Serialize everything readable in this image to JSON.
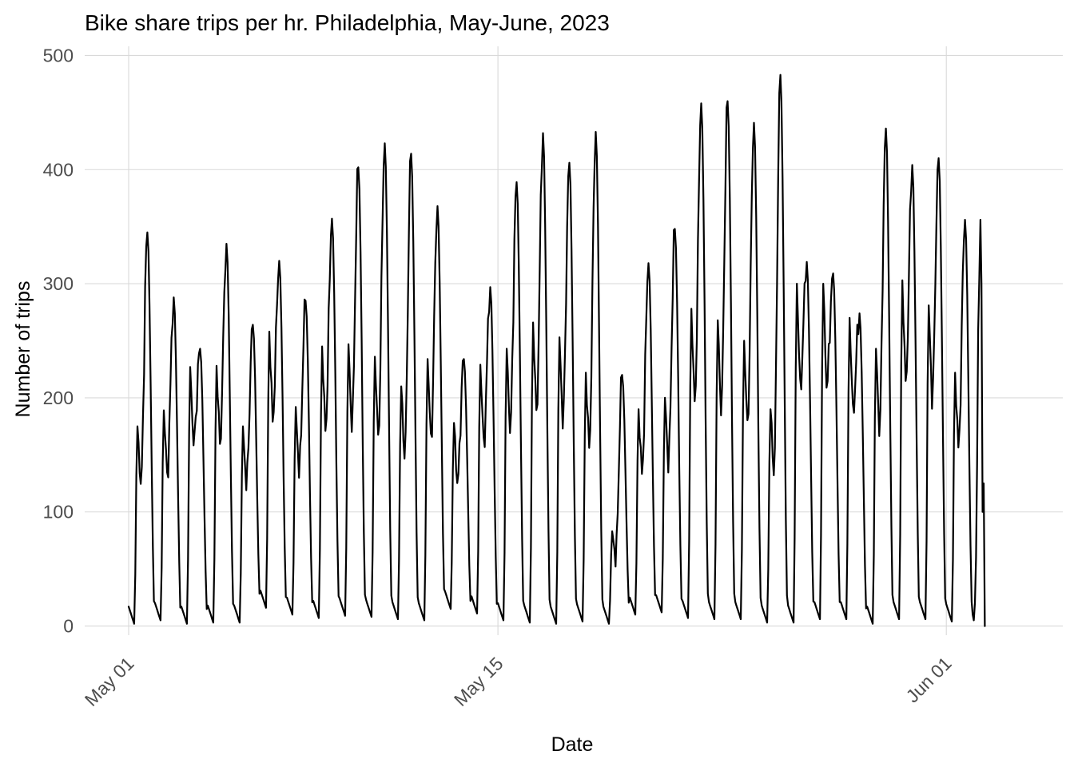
{
  "chart_data": {
    "type": "line",
    "title": "Bike share trips per hr. Philadelphia, May-June, 2023",
    "xlabel": "Date",
    "ylabel": "Number of trips",
    "x_type": "datetime",
    "x_range": [
      "2023-04-29T08:00",
      "2023-06-05T10:00"
    ],
    "ylim": [
      -8,
      508
    ],
    "x_ticks": [
      {
        "value": "2023-05-01",
        "label": "May 01"
      },
      {
        "value": "2023-05-15",
        "label": "May 15"
      },
      {
        "value": "2023-06-01",
        "label": "Jun 01"
      }
    ],
    "y_ticks": [
      0,
      100,
      200,
      300,
      400,
      500
    ],
    "grid": true,
    "legend": "none",
    "x_tick_rotation": 45,
    "line_color": "#000000",
    "series": [
      {
        "x_start": "2023-05-01T00:00",
        "x_step_hours": 1,
        "daily_peak_value": [
          345,
          288,
          243,
          335,
          264,
          320,
          285,
          357,
          402,
          423,
          414,
          368,
          234,
          297,
          389,
          432,
          406,
          433,
          220,
          318,
          348,
          458,
          460,
          441,
          483,
          319,
          309,
          274,
          436,
          404,
          410,
          356
        ],
        "daily_morning_peak_value": [
          175,
          189,
          227,
          228,
          175,
          258,
          192,
          245,
          247,
          236,
          210,
          234,
          178,
          229,
          243,
          266,
          253,
          222,
          83,
          190,
          200,
          278,
          268,
          250,
          190,
          300,
          300,
          270,
          243,
          303,
          281,
          222
        ],
        "daily_min_value": [
          2,
          5,
          2,
          3,
          3,
          16,
          10,
          7,
          9,
          8,
          6,
          5,
          15,
          11,
          5,
          3,
          2,
          4,
          2,
          10,
          12,
          7,
          6,
          6,
          3,
          3,
          6,
          6,
          2,
          6,
          6,
          4
        ],
        "final_day_values": [
          10,
          5,
          20,
          60,
          140,
          260,
          305,
          356,
          300,
          100,
          125,
          0
        ]
      }
    ]
  }
}
